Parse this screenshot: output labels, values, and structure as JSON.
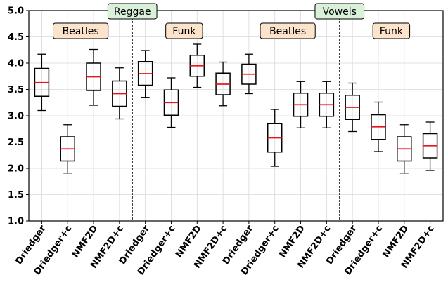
{
  "chart_data": {
    "type": "box",
    "ylim": [
      1.0,
      5.0
    ],
    "yticks": [
      "1.0",
      "1.5",
      "2.0",
      "2.5",
      "3.0",
      "3.5",
      "4.0",
      "4.5",
      "5.0"
    ],
    "grid": true,
    "categories": [
      "Driedger",
      "Driedger+c",
      "NMF2D",
      "NMF2D+c"
    ],
    "median_color": "#e8141c",
    "box_color": "#000000",
    "dataset_label_bg": "#d9f0d9",
    "genre_label_bg": "#fbe3cc",
    "datasets": [
      {
        "name": "Reggae",
        "groups": [
          {
            "name": "Beatles",
            "boxes": [
              {
                "label": "Driedger",
                "whisker_low": 3.1,
                "q1": 3.37,
                "median": 3.63,
                "q3": 3.9,
                "whisker_high": 4.17
              },
              {
                "label": "Driedger+c",
                "whisker_low": 1.91,
                "q1": 2.14,
                "median": 2.37,
                "q3": 2.6,
                "whisker_high": 2.83
              },
              {
                "label": "NMF2D",
                "whisker_low": 3.2,
                "q1": 3.48,
                "median": 3.74,
                "q3": 4.0,
                "whisker_high": 4.26
              },
              {
                "label": "NMF2D+c",
                "whisker_low": 2.94,
                "q1": 3.18,
                "median": 3.42,
                "q3": 3.66,
                "whisker_high": 3.91
              }
            ]
          },
          {
            "name": "Funk",
            "boxes": [
              {
                "label": "Driedger",
                "whisker_low": 3.35,
                "q1": 3.58,
                "median": 3.8,
                "q3": 4.03,
                "whisker_high": 4.24
              },
              {
                "label": "Driedger+c",
                "whisker_low": 2.78,
                "q1": 3.01,
                "median": 3.25,
                "q3": 3.49,
                "whisker_high": 3.72
              },
              {
                "label": "NMF2D",
                "whisker_low": 3.54,
                "q1": 3.75,
                "median": 3.95,
                "q3": 4.15,
                "whisker_high": 4.36
              },
              {
                "label": "NMF2D+c",
                "whisker_low": 3.19,
                "q1": 3.4,
                "median": 3.6,
                "q3": 3.81,
                "whisker_high": 4.02
              }
            ]
          }
        ]
      },
      {
        "name": "Vowels",
        "groups": [
          {
            "name": "Beatles",
            "boxes": [
              {
                "label": "Driedger",
                "whisker_low": 3.42,
                "q1": 3.6,
                "median": 3.79,
                "q3": 3.98,
                "whisker_high": 4.17
              },
              {
                "label": "Driedger+c",
                "whisker_low": 2.04,
                "q1": 2.31,
                "median": 2.58,
                "q3": 2.85,
                "whisker_high": 3.12
              },
              {
                "label": "NMF2D",
                "whisker_low": 2.77,
                "q1": 2.99,
                "median": 3.21,
                "q3": 3.43,
                "whisker_high": 3.65
              },
              {
                "label": "NMF2D+c",
                "whisker_low": 2.77,
                "q1": 2.99,
                "median": 3.21,
                "q3": 3.43,
                "whisker_high": 3.65
              }
            ]
          },
          {
            "name": "Funk",
            "boxes": [
              {
                "label": "Driedger",
                "whisker_low": 2.7,
                "q1": 2.93,
                "median": 3.16,
                "q3": 3.39,
                "whisker_high": 3.62
              },
              {
                "label": "Driedger+c",
                "whisker_low": 2.32,
                "q1": 2.55,
                "median": 2.79,
                "q3": 3.02,
                "whisker_high": 3.26
              },
              {
                "label": "NMF2D",
                "whisker_low": 1.91,
                "q1": 2.14,
                "median": 2.37,
                "q3": 2.6,
                "whisker_high": 2.83
              },
              {
                "label": "NMF2D+c",
                "whisker_low": 1.96,
                "q1": 2.2,
                "median": 2.43,
                "q3": 2.66,
                "whisker_high": 2.88
              }
            ]
          }
        ]
      }
    ]
  }
}
